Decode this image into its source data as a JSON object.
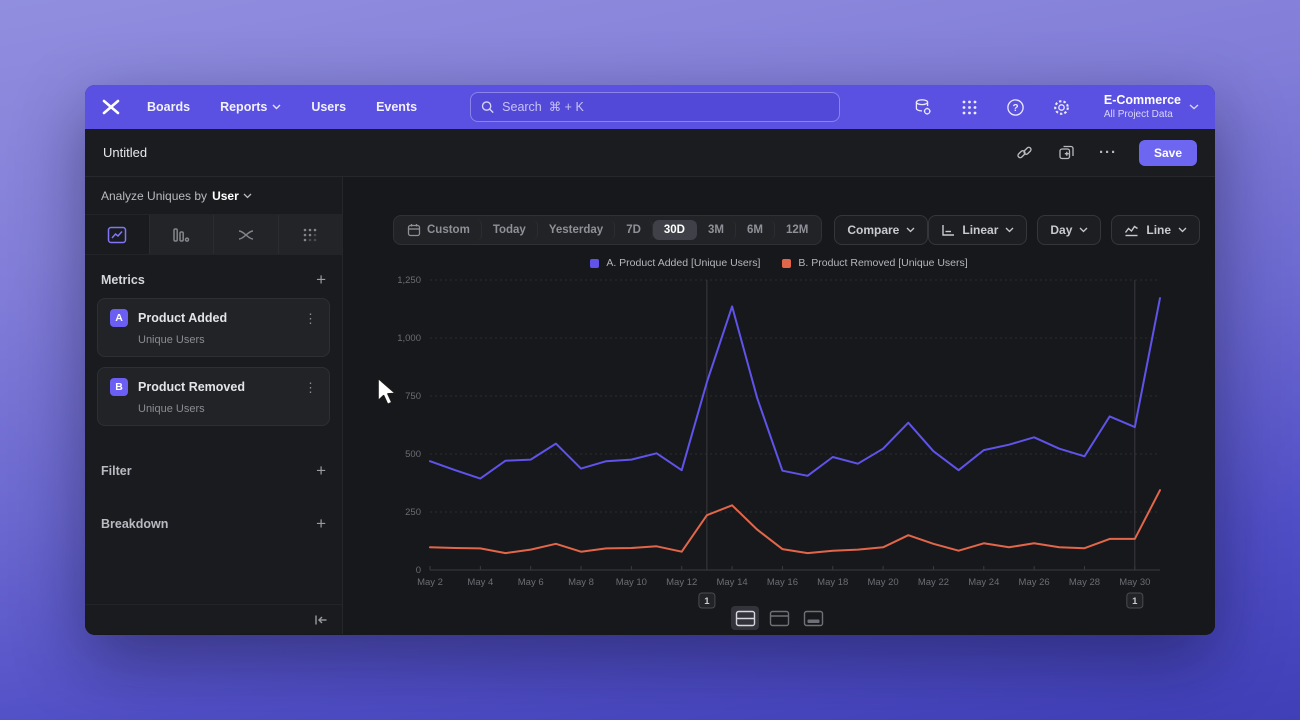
{
  "nav": {
    "items": [
      "Boards",
      "Reports",
      "Users",
      "Events"
    ],
    "search_placeholder": "Search  ⌘ + K",
    "project_name": "E-Commerce",
    "project_scope": "All Project Data"
  },
  "titlebar": {
    "title": "Untitled",
    "save_label": "Save"
  },
  "sidebar": {
    "analyze_label": "Analyze Uniques by",
    "analyze_value": "User",
    "metrics": {
      "label": "Metrics",
      "items": [
        {
          "badge": "A",
          "name": "Product Added",
          "sub": "Unique Users"
        },
        {
          "badge": "B",
          "name": "Product Removed",
          "sub": "Unique Users"
        }
      ]
    },
    "filter_label": "Filter",
    "breakdown_label": "Breakdown"
  },
  "toolbar": {
    "ranges": [
      "Custom",
      "Today",
      "Yesterday",
      "7D",
      "30D",
      "3M",
      "6M",
      "12M"
    ],
    "selected_range": "30D",
    "compare_label": "Compare",
    "scale_label": "Linear",
    "interval_label": "Day",
    "chart_type_label": "Line"
  },
  "icons": {
    "plus": "+",
    "kebab": "⋮",
    "ellipsis": "···"
  },
  "chart_data": {
    "type": "line",
    "title": "",
    "xlabel": "",
    "ylabel": "",
    "ylim": [
      0,
      1250
    ],
    "yticks": [
      0,
      250,
      500,
      750,
      1000,
      1250
    ],
    "grid": "horizontal-dashed",
    "legend_position": "top-center",
    "xtick_every": 2,
    "x": [
      "May 2",
      "May 3",
      "May 4",
      "May 5",
      "May 6",
      "May 7",
      "May 8",
      "May 9",
      "May 10",
      "May 11",
      "May 12",
      "May 13",
      "May 14",
      "May 15",
      "May 16",
      "May 17",
      "May 18",
      "May 19",
      "May 20",
      "May 21",
      "May 22",
      "May 23",
      "May 24",
      "May 25",
      "May 26",
      "May 27",
      "May 28",
      "May 29",
      "May 30",
      "May 31"
    ],
    "series": [
      {
        "name": "A. Product Added [Unique Users]",
        "color": "#5f53ea",
        "values": [
          469,
          430,
          394,
          471,
          476,
          545,
          437,
          469,
          476,
          503,
          430,
          810,
          1136,
          741,
          428,
          406,
          487,
          458,
          523,
          635,
          512,
          430,
          517,
          540,
          572,
          523,
          490,
          662,
          616,
          1172
        ]
      },
      {
        "name": "B. Product Removed [Unique Users]",
        "color": "#e2664a",
        "values": [
          98,
          95,
          93,
          73,
          88,
          113,
          79,
          93,
          95,
          102,
          79,
          236,
          279,
          174,
          90,
          73,
          83,
          88,
          98,
          150,
          113,
          83,
          115,
          98,
          115,
          98,
          94,
          134,
          134,
          344
        ]
      }
    ],
    "annotations": [
      {
        "x_label": "May 13",
        "count": "1"
      },
      {
        "x_label": "May 30",
        "count": "1"
      }
    ]
  }
}
